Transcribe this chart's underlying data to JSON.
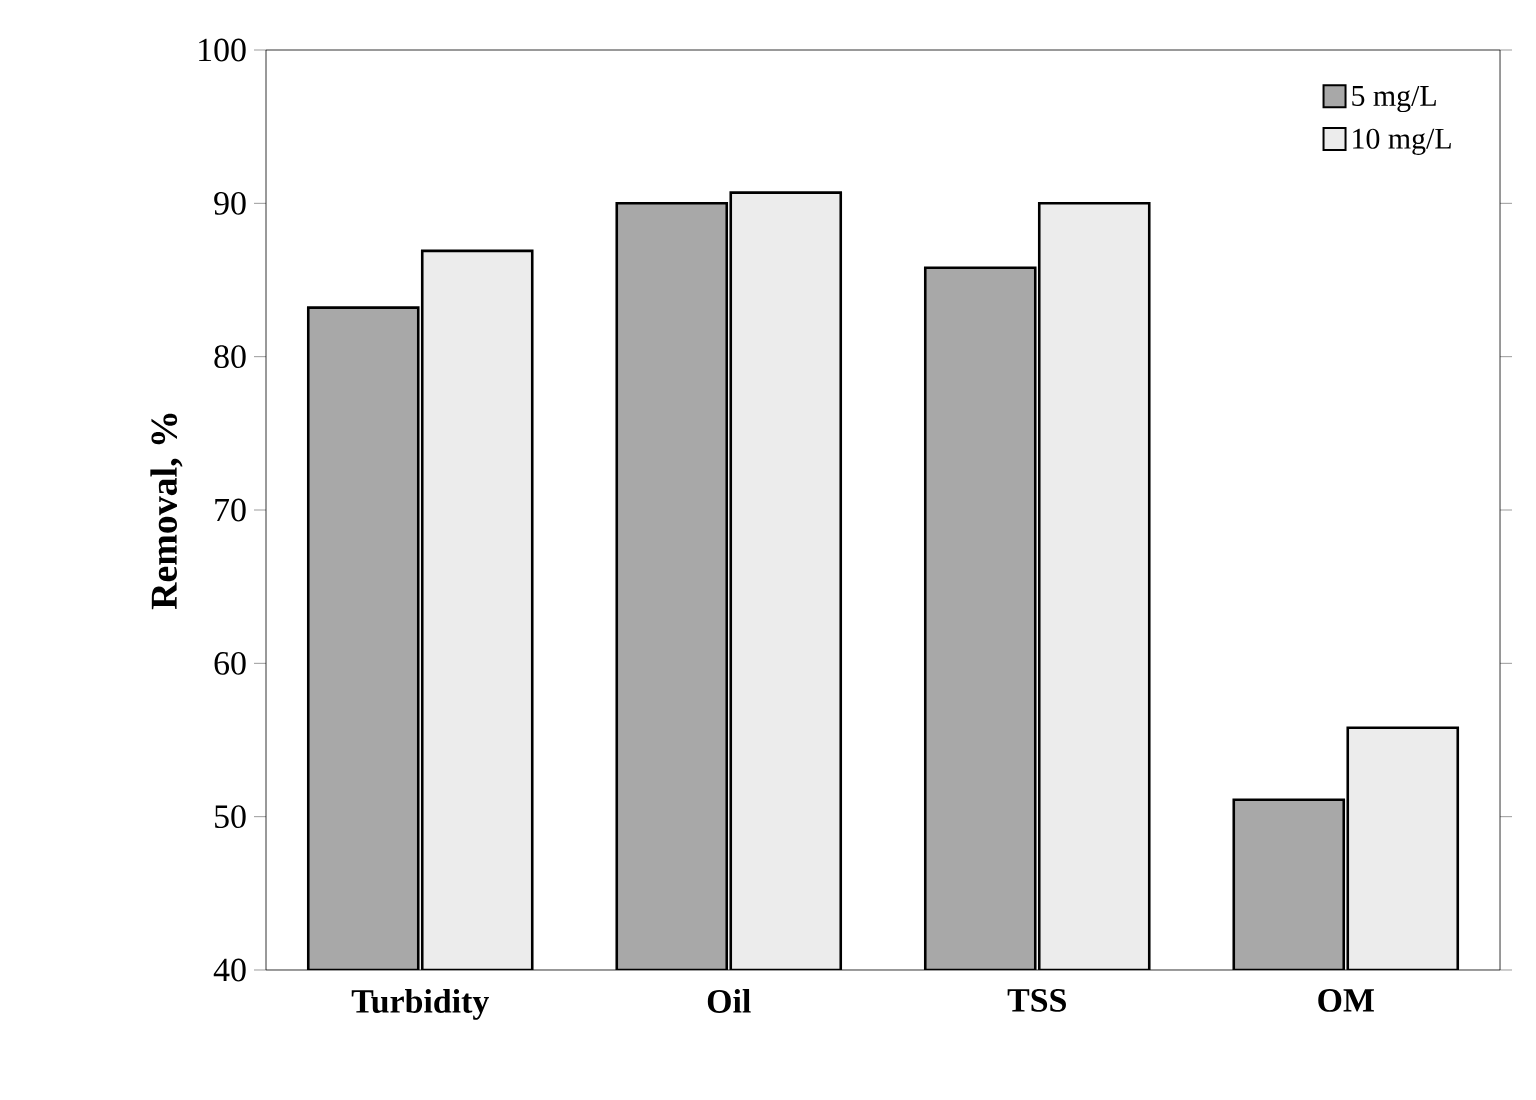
{
  "chart_data": {
    "type": "bar",
    "ylabel": "Removal, %",
    "categories": [
      "Turbidity",
      "Oil",
      "TSS",
      "OM"
    ],
    "series": [
      {
        "name": "5 mg/L",
        "color": "#a8a8a8",
        "values": [
          83.2,
          90,
          85.8,
          51.1
        ]
      },
      {
        "name": "10 mg/L",
        "color": "#ececec",
        "values": [
          86.9,
          90.7,
          90,
          55.8
        ]
      }
    ],
    "ylim": [
      40,
      100
    ],
    "yticks": [
      40,
      50,
      60,
      70,
      80,
      90,
      100
    ],
    "grid": false,
    "legend": "top right"
  }
}
